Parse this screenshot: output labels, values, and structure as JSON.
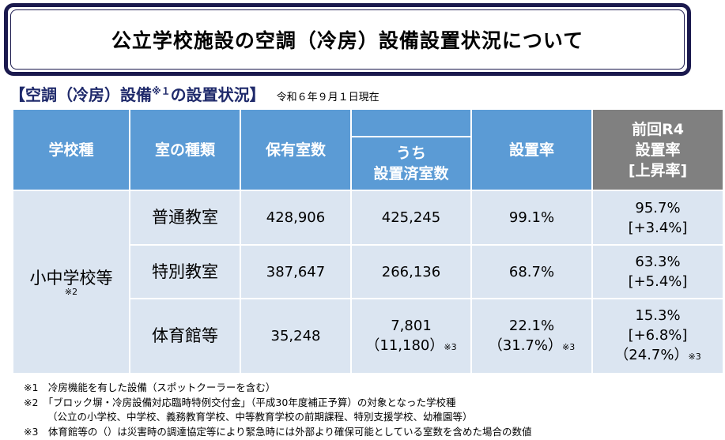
{
  "title": "公立学校施設の空調（冷房）設備設置状況について",
  "subtitle": {
    "heading_pre": "【空調（冷房）設備",
    "heading_note": "※１",
    "heading_post": "の設置状況】",
    "date": "令和６年９月１日現在"
  },
  "table": {
    "headers": {
      "school_type": "学校種",
      "room_type": "室の種類",
      "rooms_owned": "保有室数",
      "installed_l1": "うち",
      "installed_l2": "設置済室数",
      "rate": "設置率",
      "prev_l1": "前回R4",
      "prev_l2": "設置率",
      "prev_l3": "[上昇率]"
    },
    "school": "小中学校等",
    "school_note": "※2",
    "rows": [
      {
        "room": "普通教室",
        "owned": "428,906",
        "installed": "425,245",
        "installed_extra": "",
        "rate": "99.1%",
        "rate_extra": "",
        "prev": "95.7%",
        "increase": "[+3.4%]",
        "prev_extra": ""
      },
      {
        "room": "特別教室",
        "owned": "387,647",
        "installed": "266,136",
        "installed_extra": "",
        "rate": "68.7%",
        "rate_extra": "",
        "prev": "63.3%",
        "increase": "[+5.4%]",
        "prev_extra": ""
      },
      {
        "room": "体育館等",
        "owned": "35,248",
        "installed": "7,801",
        "installed_extra": "（11,180）",
        "rate": "22.1%",
        "rate_extra": "（31.7%）",
        "prev": "15.3%",
        "increase": "[+6.8%]",
        "prev_extra": "（24.7%）"
      }
    ],
    "note3": "※3"
  },
  "notes": [
    "※1　冷房機能を有した設備（スポットクーラーを含む）",
    "※2　「ブロック塀・冷房設備対応臨時特例交付金」（平成30年度補正予算）の対象となった学校種",
    "（公立の小学校、中学校、義務教育学校、中等教育学校の前期課程、特別支援学校、幼稚園等）",
    "※3　体育館等の（）は災害時の調達協定等により緊急時には外部より確保可能としている室数を含めた場合の数値"
  ],
  "colors": {
    "header_blue": "#5b9bd5",
    "header_gray": "#808080",
    "cell": "#dbe5f1",
    "title_border": "#1b1a4e"
  }
}
